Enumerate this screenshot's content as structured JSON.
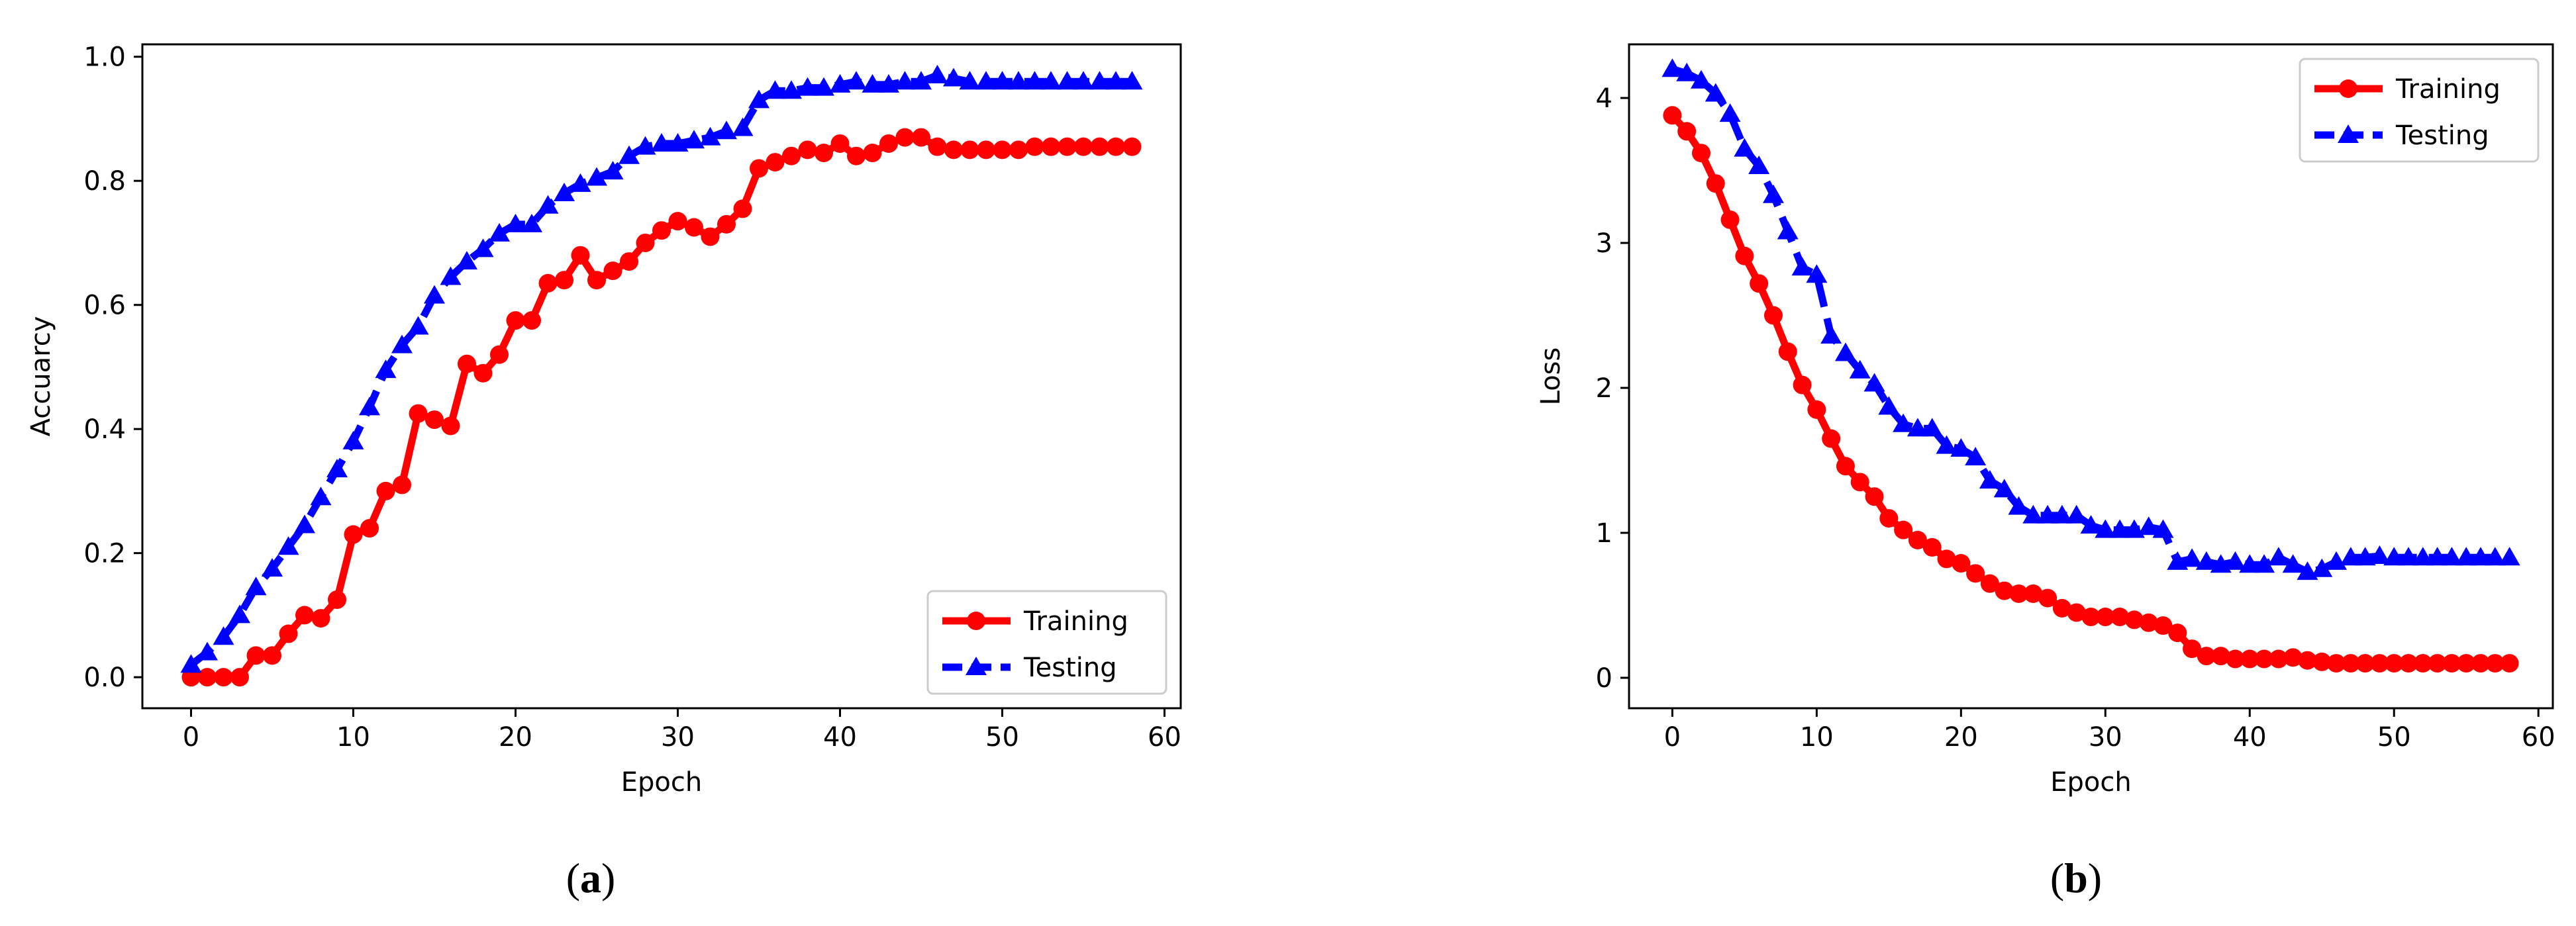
{
  "figure": {
    "panels": [
      {
        "label": "a"
      },
      {
        "label": "b"
      }
    ]
  },
  "chart_data": [
    {
      "type": "line",
      "title": "",
      "xlabel": "Epoch",
      "ylabel": "Accuarcy",
      "xlim": [
        -3,
        61
      ],
      "ylim": [
        -0.05,
        1.02
      ],
      "xticks": [
        "0",
        "10",
        "20",
        "30",
        "40",
        "50",
        "60"
      ],
      "xtick_values": [
        0,
        10,
        20,
        30,
        40,
        50,
        60
      ],
      "yticks": [
        "0.0",
        "0.2",
        "0.4",
        "0.6",
        "0.8",
        "1.0"
      ],
      "ytick_values": [
        0.0,
        0.2,
        0.4,
        0.6,
        0.8,
        1.0
      ],
      "grid": false,
      "legend": "lower-right",
      "x": [
        0,
        1,
        2,
        3,
        4,
        5,
        6,
        7,
        8,
        9,
        10,
        11,
        12,
        13,
        14,
        15,
        16,
        17,
        18,
        19,
        20,
        21,
        22,
        23,
        24,
        25,
        26,
        27,
        28,
        29,
        30,
        31,
        32,
        33,
        34,
        35,
        36,
        37,
        38,
        39,
        40,
        41,
        42,
        43,
        44,
        45,
        46,
        47,
        48,
        49,
        50,
        51,
        52,
        53,
        54,
        55,
        56,
        57,
        58
      ],
      "series": [
        {
          "name": "Training",
          "color": "#ff0000",
          "marker": "circle",
          "linestyle": "solid",
          "values": [
            0,
            0,
            0,
            0,
            0.035,
            0.035,
            0.07,
            0.1,
            0.095,
            0.125,
            0.23,
            0.24,
            0.3,
            0.31,
            0.425,
            0.415,
            0.405,
            0.505,
            0.49,
            0.52,
            0.575,
            0.575,
            0.635,
            0.64,
            0.68,
            0.64,
            0.655,
            0.67,
            0.7,
            0.72,
            0.735,
            0.725,
            0.71,
            0.73,
            0.755,
            0.82,
            0.83,
            0.84,
            0.85,
            0.845,
            0.86,
            0.84,
            0.845,
            0.86,
            0.87,
            0.87,
            0.855,
            0.85,
            0.85,
            0.85,
            0.85,
            0.85,
            0.855,
            0.855,
            0.855,
            0.855,
            0.855,
            0.855,
            0.855
          ]
        },
        {
          "name": "Testing",
          "color": "#0000ff",
          "marker": "triangle",
          "linestyle": "dashed",
          "values": [
            0.02,
            0.04,
            0.065,
            0.1,
            0.145,
            0.175,
            0.21,
            0.245,
            0.29,
            0.335,
            0.38,
            0.435,
            0.495,
            0.535,
            0.565,
            0.615,
            0.645,
            0.67,
            0.69,
            0.715,
            0.73,
            0.73,
            0.76,
            0.78,
            0.795,
            0.805,
            0.815,
            0.84,
            0.855,
            0.86,
            0.86,
            0.865,
            0.87,
            0.88,
            0.885,
            0.93,
            0.945,
            0.945,
            0.95,
            0.95,
            0.955,
            0.96,
            0.955,
            0.955,
            0.96,
            0.96,
            0.97,
            0.965,
            0.96,
            0.96,
            0.96,
            0.96,
            0.96,
            0.96,
            0.96,
            0.96,
            0.96,
            0.96,
            0.96
          ]
        }
      ]
    },
    {
      "type": "line",
      "title": "",
      "xlabel": "Epoch",
      "ylabel": "Loss",
      "xlim": [
        -3,
        61
      ],
      "ylim": [
        -0.21,
        4.37
      ],
      "xticks": [
        "0",
        "10",
        "20",
        "30",
        "40",
        "50",
        "60"
      ],
      "xtick_values": [
        0,
        10,
        20,
        30,
        40,
        50,
        60
      ],
      "yticks": [
        "0",
        "1",
        "2",
        "3",
        "4"
      ],
      "ytick_values": [
        0,
        1,
        2,
        3,
        4
      ],
      "grid": false,
      "legend": "top-right",
      "x": [
        0,
        1,
        2,
        3,
        4,
        5,
        6,
        7,
        8,
        9,
        10,
        11,
        12,
        13,
        14,
        15,
        16,
        17,
        18,
        19,
        20,
        21,
        22,
        23,
        24,
        25,
        26,
        27,
        28,
        29,
        30,
        31,
        32,
        33,
        34,
        35,
        36,
        37,
        38,
        39,
        40,
        41,
        42,
        43,
        44,
        45,
        46,
        47,
        48,
        49,
        50,
        51,
        52,
        53,
        54,
        55,
        56,
        57,
        58
      ],
      "series": [
        {
          "name": "Training",
          "color": "#ff0000",
          "marker": "circle",
          "linestyle": "solid",
          "values": [
            3.88,
            3.77,
            3.62,
            3.41,
            3.16,
            2.91,
            2.72,
            2.5,
            2.25,
            2.02,
            1.85,
            1.65,
            1.46,
            1.35,
            1.25,
            1.1,
            1.02,
            0.95,
            0.9,
            0.82,
            0.79,
            0.72,
            0.65,
            0.6,
            0.58,
            0.58,
            0.55,
            0.48,
            0.45,
            0.42,
            0.42,
            0.42,
            0.4,
            0.38,
            0.36,
            0.31,
            0.2,
            0.15,
            0.15,
            0.13,
            0.13,
            0.13,
            0.13,
            0.14,
            0.12,
            0.11,
            0.1,
            0.1,
            0.1,
            0.1,
            0.1,
            0.1,
            0.1,
            0.1,
            0.1,
            0.1,
            0.1,
            0.1,
            0.1
          ]
        },
        {
          "name": "Testing",
          "color": "#0000ff",
          "marker": "triangle",
          "linestyle": "dashed",
          "values": [
            4.2,
            4.17,
            4.12,
            4.03,
            3.89,
            3.65,
            3.53,
            3.33,
            3.08,
            2.83,
            2.78,
            2.36,
            2.24,
            2.12,
            2.03,
            1.87,
            1.75,
            1.72,
            1.72,
            1.6,
            1.58,
            1.52,
            1.36,
            1.3,
            1.18,
            1.12,
            1.12,
            1.12,
            1.12,
            1.05,
            1.02,
            1.02,
            1.02,
            1.04,
            1.02,
            0.8,
            0.82,
            0.8,
            0.78,
            0.8,
            0.78,
            0.78,
            0.83,
            0.78,
            0.73,
            0.75,
            0.8,
            0.83,
            0.83,
            0.84,
            0.83,
            0.83,
            0.83,
            0.83,
            0.83,
            0.83,
            0.83,
            0.83,
            0.83
          ]
        }
      ]
    }
  ]
}
